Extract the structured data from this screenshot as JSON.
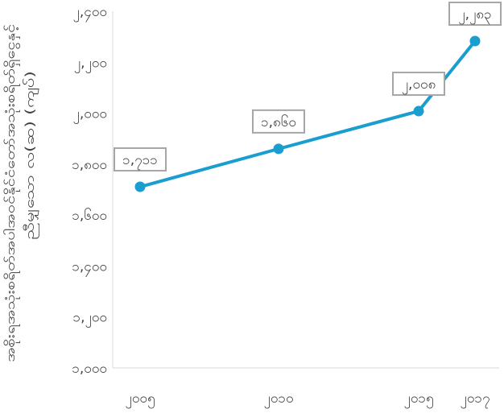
{
  "chart_data": {
    "type": "line",
    "ylabel_line1": "အစိုးရအသုံးစရိတ်အပါအဝင်နိုင်ငံတော်အသုံးစရိတ်ရှိငွေနှင့်",
    "ylabel_line2": "ညီမျှသော လ(ဆ) (ကျပ်)",
    "x": [
      "၂၀၀၅",
      "၂၀၁၀",
      "၂၀၁၅",
      "၂၀၁၇"
    ],
    "x_numeric": [
      2005,
      2010,
      2015,
      2017
    ],
    "values": [
      1711,
      1860,
      2008,
      2283
    ],
    "data_labels": [
      "၁,၇၁၁",
      "၁,၈၆၀",
      "၂,၀၀၈",
      "၂,၂၈၃"
    ],
    "ylim": [
      1000,
      2400
    ],
    "yticks": [
      1000,
      1200,
      1400,
      1600,
      1800,
      2000,
      2200,
      2400
    ],
    "ytick_labels": [
      "၁,၀၀၀",
      "၁,၂၀၀",
      "၁,၄၀၀",
      "၁,၆၀၀",
      "၁,၈၀၀",
      "၂,၀၀၀",
      "၂,၂၀၀",
      "၂,၄၀၀"
    ],
    "grid": false,
    "line_color": "#1a9ed0",
    "axis_color": "#d9d9d9",
    "label_border_color": "#a6a6a6"
  }
}
